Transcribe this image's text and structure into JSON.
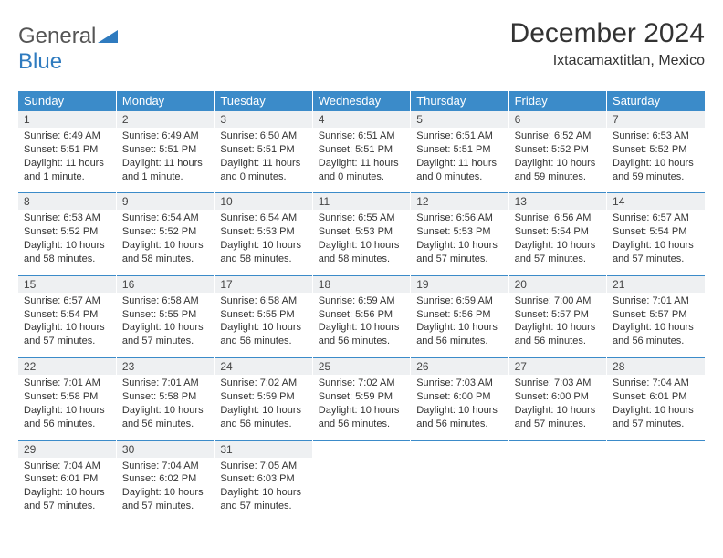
{
  "brand": {
    "part1": "General",
    "part2": "Blue"
  },
  "title": "December 2024",
  "location": "Ixtacamaxtitlan, Mexico",
  "colors": {
    "header_bg": "#3b8bc9",
    "header_text": "#ffffff",
    "daynum_bg": "#eef0f2",
    "border": "#3b8bc9",
    "brand_gray": "#555555",
    "brand_blue": "#2f7bbf"
  },
  "days_of_week": [
    "Sunday",
    "Monday",
    "Tuesday",
    "Wednesday",
    "Thursday",
    "Friday",
    "Saturday"
  ],
  "weeks": [
    [
      {
        "n": "1",
        "sunrise": "6:49 AM",
        "sunset": "5:51 PM",
        "daylight": "11 hours and 1 minute."
      },
      {
        "n": "2",
        "sunrise": "6:49 AM",
        "sunset": "5:51 PM",
        "daylight": "11 hours and 1 minute."
      },
      {
        "n": "3",
        "sunrise": "6:50 AM",
        "sunset": "5:51 PM",
        "daylight": "11 hours and 0 minutes."
      },
      {
        "n": "4",
        "sunrise": "6:51 AM",
        "sunset": "5:51 PM",
        "daylight": "11 hours and 0 minutes."
      },
      {
        "n": "5",
        "sunrise": "6:51 AM",
        "sunset": "5:51 PM",
        "daylight": "11 hours and 0 minutes."
      },
      {
        "n": "6",
        "sunrise": "6:52 AM",
        "sunset": "5:52 PM",
        "daylight": "10 hours and 59 minutes."
      },
      {
        "n": "7",
        "sunrise": "6:53 AM",
        "sunset": "5:52 PM",
        "daylight": "10 hours and 59 minutes."
      }
    ],
    [
      {
        "n": "8",
        "sunrise": "6:53 AM",
        "sunset": "5:52 PM",
        "daylight": "10 hours and 58 minutes."
      },
      {
        "n": "9",
        "sunrise": "6:54 AM",
        "sunset": "5:52 PM",
        "daylight": "10 hours and 58 minutes."
      },
      {
        "n": "10",
        "sunrise": "6:54 AM",
        "sunset": "5:53 PM",
        "daylight": "10 hours and 58 minutes."
      },
      {
        "n": "11",
        "sunrise": "6:55 AM",
        "sunset": "5:53 PM",
        "daylight": "10 hours and 58 minutes."
      },
      {
        "n": "12",
        "sunrise": "6:56 AM",
        "sunset": "5:53 PM",
        "daylight": "10 hours and 57 minutes."
      },
      {
        "n": "13",
        "sunrise": "6:56 AM",
        "sunset": "5:54 PM",
        "daylight": "10 hours and 57 minutes."
      },
      {
        "n": "14",
        "sunrise": "6:57 AM",
        "sunset": "5:54 PM",
        "daylight": "10 hours and 57 minutes."
      }
    ],
    [
      {
        "n": "15",
        "sunrise": "6:57 AM",
        "sunset": "5:54 PM",
        "daylight": "10 hours and 57 minutes."
      },
      {
        "n": "16",
        "sunrise": "6:58 AM",
        "sunset": "5:55 PM",
        "daylight": "10 hours and 57 minutes."
      },
      {
        "n": "17",
        "sunrise": "6:58 AM",
        "sunset": "5:55 PM",
        "daylight": "10 hours and 56 minutes."
      },
      {
        "n": "18",
        "sunrise": "6:59 AM",
        "sunset": "5:56 PM",
        "daylight": "10 hours and 56 minutes."
      },
      {
        "n": "19",
        "sunrise": "6:59 AM",
        "sunset": "5:56 PM",
        "daylight": "10 hours and 56 minutes."
      },
      {
        "n": "20",
        "sunrise": "7:00 AM",
        "sunset": "5:57 PM",
        "daylight": "10 hours and 56 minutes."
      },
      {
        "n": "21",
        "sunrise": "7:01 AM",
        "sunset": "5:57 PM",
        "daylight": "10 hours and 56 minutes."
      }
    ],
    [
      {
        "n": "22",
        "sunrise": "7:01 AM",
        "sunset": "5:58 PM",
        "daylight": "10 hours and 56 minutes."
      },
      {
        "n": "23",
        "sunrise": "7:01 AM",
        "sunset": "5:58 PM",
        "daylight": "10 hours and 56 minutes."
      },
      {
        "n": "24",
        "sunrise": "7:02 AM",
        "sunset": "5:59 PM",
        "daylight": "10 hours and 56 minutes."
      },
      {
        "n": "25",
        "sunrise": "7:02 AM",
        "sunset": "5:59 PM",
        "daylight": "10 hours and 56 minutes."
      },
      {
        "n": "26",
        "sunrise": "7:03 AM",
        "sunset": "6:00 PM",
        "daylight": "10 hours and 56 minutes."
      },
      {
        "n": "27",
        "sunrise": "7:03 AM",
        "sunset": "6:00 PM",
        "daylight": "10 hours and 57 minutes."
      },
      {
        "n": "28",
        "sunrise": "7:04 AM",
        "sunset": "6:01 PM",
        "daylight": "10 hours and 57 minutes."
      }
    ],
    [
      {
        "n": "29",
        "sunrise": "7:04 AM",
        "sunset": "6:01 PM",
        "daylight": "10 hours and 57 minutes."
      },
      {
        "n": "30",
        "sunrise": "7:04 AM",
        "sunset": "6:02 PM",
        "daylight": "10 hours and 57 minutes."
      },
      {
        "n": "31",
        "sunrise": "7:05 AM",
        "sunset": "6:03 PM",
        "daylight": "10 hours and 57 minutes."
      },
      null,
      null,
      null,
      null
    ]
  ],
  "labels": {
    "sunrise_prefix": "Sunrise: ",
    "sunset_prefix": "Sunset: ",
    "daylight_prefix": "Daylight: "
  }
}
